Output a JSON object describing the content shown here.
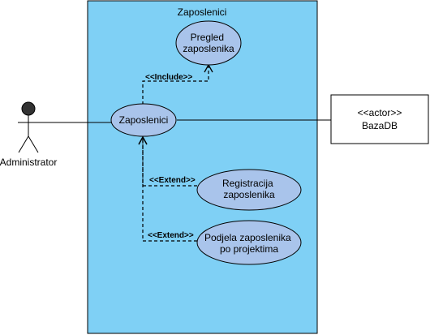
{
  "system": {
    "title": "Zaposlenici"
  },
  "actors": {
    "administrator": {
      "label": "Administrator"
    },
    "baza": {
      "stereotype": "<<actor>>",
      "label": "BazaDB"
    }
  },
  "use_cases": {
    "main": {
      "label": "Zaposlenici"
    },
    "pregled": {
      "lines": [
        "Pregled",
        "zaposlenika"
      ]
    },
    "registracija": {
      "lines": [
        "Registracija",
        "zaposlenika"
      ]
    },
    "podjela": {
      "lines": [
        "Podjela zaposlenika",
        "po projektima"
      ]
    }
  },
  "relations": {
    "include": "<<Include>>",
    "extend_registracija": "<<Extend>>",
    "extend_podjela": "<<Extend>>"
  },
  "colors": {
    "system_fill": "#7fd0f5",
    "use_case_fill": "#a9c4eb",
    "actor_head": "#333333",
    "line": "#000000"
  }
}
